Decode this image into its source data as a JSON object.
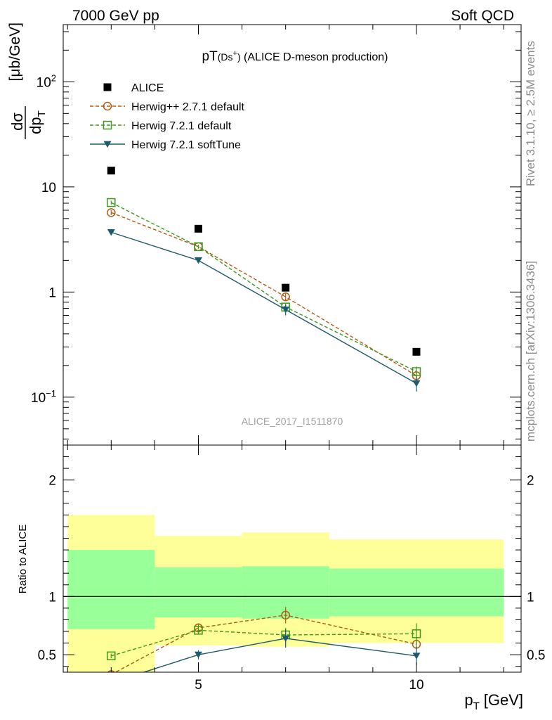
{
  "header": {
    "left": "7000 GeV pp",
    "right": "Soft QCD"
  },
  "side_labels": {
    "rivet": "Rivet 3.1.10, ≥ 2.5M events",
    "mcplots": "mcplots.cern.ch [arXiv:1306.3436]"
  },
  "watermark": "ALICE_2017_I1511870",
  "chart_data": [
    {
      "type": "scatter",
      "title": "pT(Ds⁺) (ALICE D-meson production)",
      "title_parts": {
        "main": "pT",
        "sub": "(Ds",
        "sup": "+",
        "close": ")",
        "rest": " (ALICE D-meson production)"
      },
      "xlabel": "p_T [GeV]",
      "xlabel_parts": {
        "p": "p",
        "sub": "T",
        "unit": "[GeV]"
      },
      "ylabel": "dσ/dp_T [μb/GeV]",
      "ylabel_parts": {
        "num": "dσ",
        "den": "dp",
        "den_sub": "T",
        "unit": "[μb/GeV]"
      },
      "xlim": [
        1.9,
        12.4
      ],
      "ylim": [
        0.035,
        350
      ],
      "yscale": "log",
      "yticks": [
        {
          "value": 0.1,
          "base": "10",
          "exp": "−1"
        },
        {
          "value": 1,
          "base": "1",
          "exp": ""
        },
        {
          "value": 10,
          "base": "10",
          "exp": ""
        },
        {
          "value": 100,
          "base": "10",
          "exp": "2"
        }
      ],
      "legend_position": "top-left",
      "series": [
        {
          "name": "ALICE",
          "marker": "square-filled",
          "color": "#000000",
          "line": "none",
          "x": [
            3,
            5,
            7,
            10
          ],
          "y": [
            14.3,
            4.0,
            1.1,
            0.27
          ]
        },
        {
          "name": "Herwig++ 2.7.1 default",
          "marker": "circle-open",
          "color": "#b35a12",
          "line": "dashed",
          "x": [
            3,
            5,
            7,
            10
          ],
          "y": [
            5.7,
            2.7,
            0.9,
            0.16
          ],
          "err": [
            0.3,
            0.12,
            0.07,
            0.02
          ]
        },
        {
          "name": "Herwig 7.2.1 default",
          "marker": "square-open",
          "color": "#3c9a1c",
          "line": "dashed",
          "x": [
            3,
            5,
            7,
            10
          ],
          "y": [
            7.1,
            2.7,
            0.72,
            0.175
          ],
          "err": [
            0.3,
            0.12,
            0.06,
            0.02
          ]
        },
        {
          "name": "Herwig 7.2.1 softTune",
          "marker": "triangle-down-filled",
          "color": "#1c5a6e",
          "line": "solid",
          "x": [
            3,
            5,
            7,
            10
          ],
          "y": [
            3.7,
            2.0,
            0.68,
            0.135
          ],
          "err": [
            0.15,
            0.1,
            0.08,
            0.022
          ]
        }
      ]
    },
    {
      "type": "scatter",
      "ylabel": "Ratio to ALICE",
      "xlim": [
        1.9,
        12.4
      ],
      "ylim": [
        0.35,
        2.3
      ],
      "yticks": [
        0.5,
        1,
        2
      ],
      "xticks": [
        5,
        10
      ],
      "reference": 1,
      "bands": [
        {
          "x0": 2,
          "x1": 4,
          "inner": [
            0.72,
            1.4
          ],
          "outer": [
            0.2,
            1.7
          ]
        },
        {
          "x0": 4,
          "x1": 6,
          "inner": [
            0.82,
            1.25
          ],
          "outer": [
            0.58,
            1.52
          ]
        },
        {
          "x0": 6,
          "x1": 8,
          "inner": [
            0.81,
            1.26
          ],
          "outer": [
            0.57,
            1.55
          ]
        },
        {
          "x0": 8,
          "x1": 12,
          "inner": [
            0.83,
            1.24
          ],
          "outer": [
            0.6,
            1.49
          ]
        }
      ],
      "band_colors": {
        "inner": "#99ff99",
        "outer": "#ffff99"
      },
      "series": [
        {
          "name": "Herwig++ 2.7.1 default",
          "color": "#b35a12",
          "marker": "circle-open",
          "line": "dashed",
          "x": [
            3,
            5,
            7,
            10
          ],
          "y": [
            0.33,
            0.73,
            0.84,
            0.59
          ],
          "err": [
            0.02,
            0.04,
            0.07,
            0.05
          ]
        },
        {
          "name": "Herwig 7.2.1 default",
          "color": "#3c9a1c",
          "marker": "square-open",
          "line": "dashed",
          "x": [
            3,
            5,
            7,
            10
          ],
          "y": [
            0.49,
            0.71,
            0.67,
            0.68
          ],
          "err": [
            0.02,
            0.03,
            0.06,
            0.09
          ]
        },
        {
          "name": "Herwig 7.2.1 softTune",
          "color": "#1c5a6e",
          "marker": "triangle-down-filled",
          "line": "solid",
          "x": [
            3,
            5,
            7,
            10
          ],
          "y": [
            0.26,
            0.5,
            0.64,
            0.49
          ],
          "err": [
            0.01,
            0.04,
            0.08,
            0.08
          ]
        }
      ]
    }
  ]
}
